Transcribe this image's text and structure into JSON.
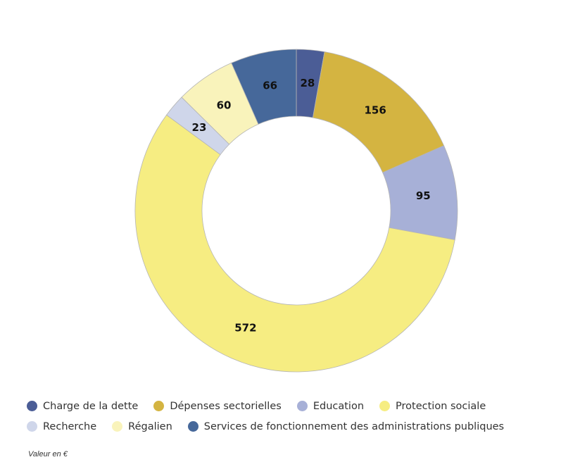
{
  "chart_data": {
    "type": "pie",
    "variant": "donut",
    "title": "",
    "slices": [
      {
        "label": "Charge de la dette",
        "value": 28,
        "color": "#4b5d96"
      },
      {
        "label": "Dépenses sectorielles",
        "value": 156,
        "color": "#d4b441"
      },
      {
        "label": "Education",
        "value": 95,
        "color": "#a7b0d7"
      },
      {
        "label": "Protection sociale",
        "value": 572,
        "color": "#f6ed82"
      },
      {
        "label": "Recherche",
        "value": 23,
        "color": "#cfd6ea"
      },
      {
        "label": "Régalien",
        "value": 60,
        "color": "#f9f3bb"
      },
      {
        "label": "Services de fonctionnement des administrations publiques",
        "value": 66,
        "color": "#46689a"
      }
    ],
    "legend_placement": "bottom-left",
    "data_labels": true
  },
  "legend": {
    "items": [
      {
        "label": "Charge de la dette",
        "color": "#4b5d96"
      },
      {
        "label": "Dépenses sectorielles",
        "color": "#d4b441"
      },
      {
        "label": "Education",
        "color": "#a7b0d7"
      },
      {
        "label": "Protection sociale",
        "color": "#f6ed82"
      },
      {
        "label": "Recherche",
        "color": "#cfd6ea"
      },
      {
        "label": "Régalien",
        "color": "#f9f3bb"
      },
      {
        "label": "Services de fonctionnement des administrations publiques",
        "color": "#46689a"
      }
    ]
  },
  "footnote": "Valeur en €"
}
